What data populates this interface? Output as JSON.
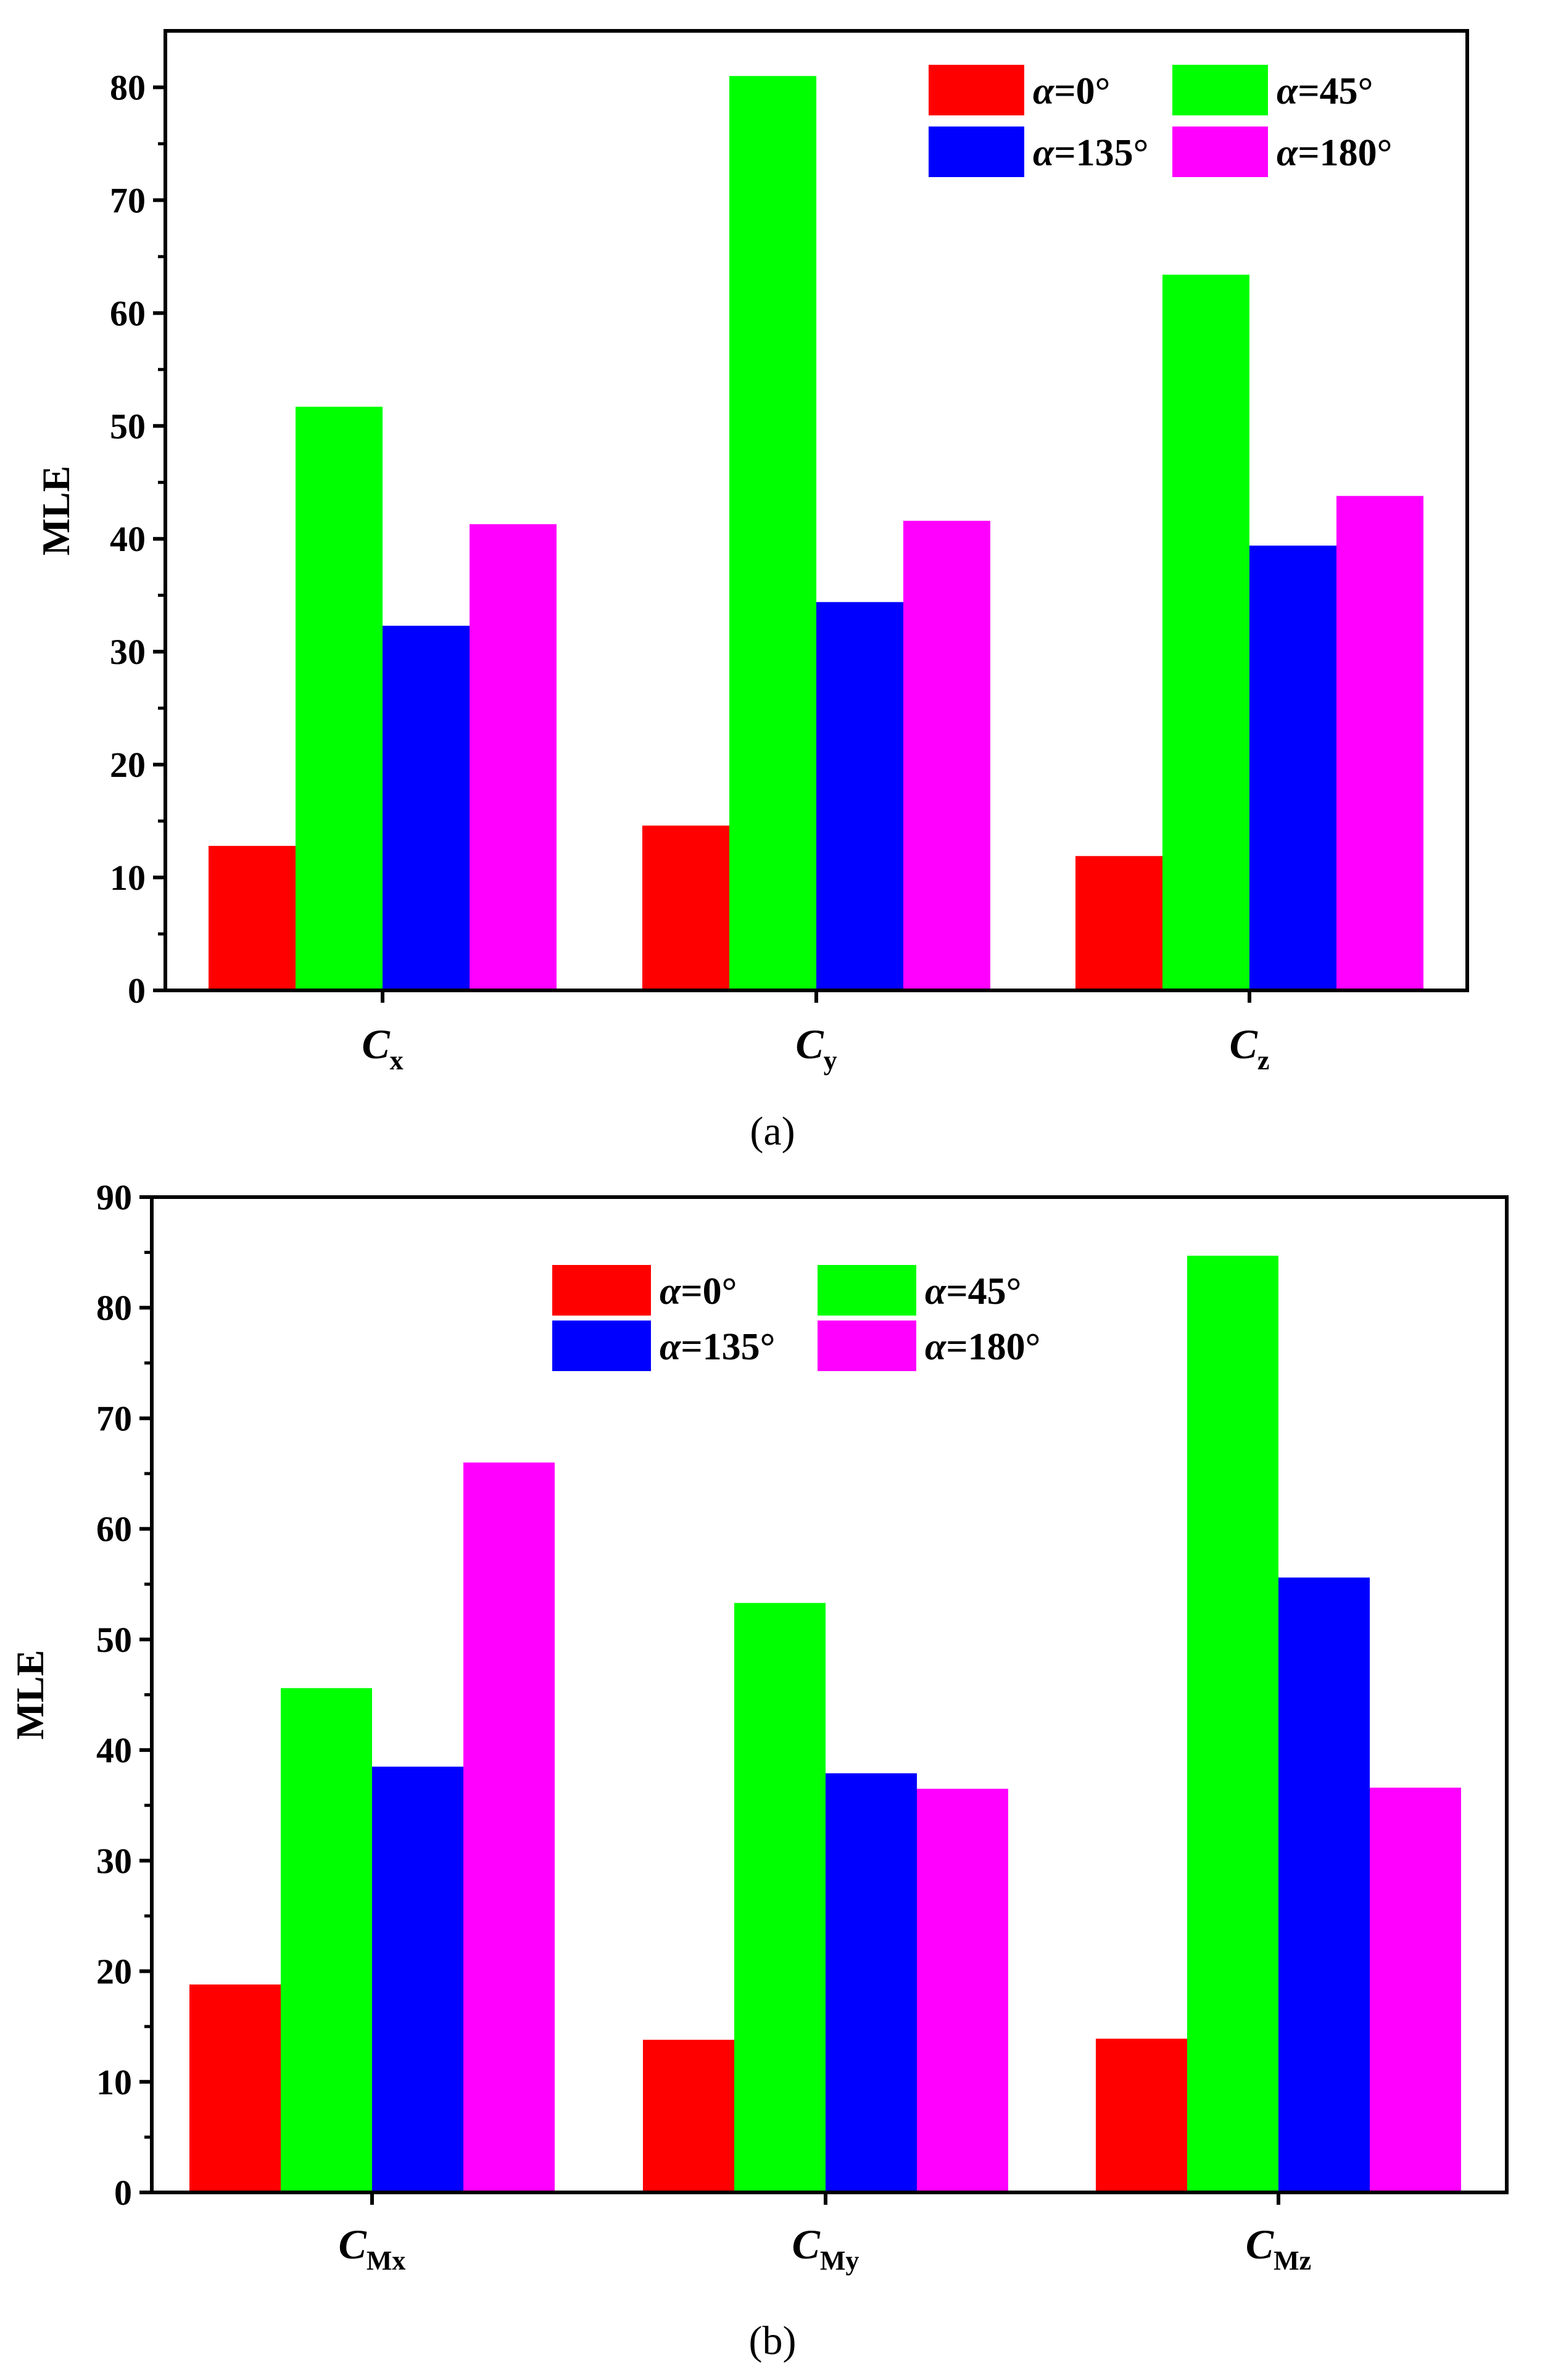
{
  "chart_data": [
    {
      "type": "bar",
      "panel_label": "(a)",
      "ylabel": "MLE",
      "ylim": [
        0,
        85
      ],
      "yticks": [
        "0",
        "10",
        "20",
        "30",
        "40",
        "50",
        "60",
        "70",
        "80"
      ],
      "categories": [
        {
          "main": "C",
          "sub": "x"
        },
        {
          "main": "C",
          "sub": "y"
        },
        {
          "main": "C",
          "sub": "z"
        }
      ],
      "series": [
        {
          "name": "α=0°",
          "greek": "α",
          "rest": "=0°",
          "color": "#ff0000",
          "values": [
            12.8,
            14.6,
            11.9
          ]
        },
        {
          "name": "α=45°",
          "greek": "α",
          "rest": "=45°",
          "color": "#00ff00",
          "values": [
            51.7,
            81.0,
            63.4
          ]
        },
        {
          "name": "α=135°",
          "greek": "α",
          "rest": "=135°",
          "color": "#0000ff",
          "values": [
            32.3,
            34.4,
            39.4
          ]
        },
        {
          "name": "α=180°",
          "greek": "α",
          "rest": "=180°",
          "color": "#ff00ff",
          "values": [
            41.3,
            41.6,
            43.8
          ]
        }
      ],
      "legend_position": "top-right"
    },
    {
      "type": "bar",
      "panel_label": "(b)",
      "ylabel": "MLE",
      "ylim": [
        0,
        90
      ],
      "yticks": [
        "0",
        "10",
        "20",
        "30",
        "40",
        "50",
        "60",
        "70",
        "80",
        "90"
      ],
      "categories": [
        {
          "main": "C",
          "sub": "Mx"
        },
        {
          "main": "C",
          "sub": "My"
        },
        {
          "main": "C",
          "sub": "Mz"
        }
      ],
      "series": [
        {
          "name": "α=0°",
          "greek": "α",
          "rest": "=0°",
          "color": "#ff0000",
          "values": [
            18.8,
            13.8,
            13.9
          ]
        },
        {
          "name": "α=45°",
          "greek": "α",
          "rest": "=45°",
          "color": "#00ff00",
          "values": [
            45.6,
            53.3,
            84.7
          ]
        },
        {
          "name": "α=135°",
          "greek": "α",
          "rest": "=135°",
          "color": "#0000ff",
          "values": [
            38.5,
            37.9,
            55.6
          ]
        },
        {
          "name": "α=180°",
          "greek": "α",
          "rest": "=180°",
          "color": "#ff00ff",
          "values": [
            66.0,
            36.5,
            36.6
          ]
        }
      ],
      "legend_position": "top-center"
    }
  ]
}
